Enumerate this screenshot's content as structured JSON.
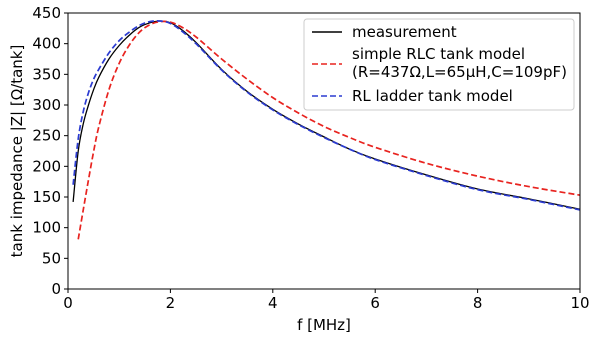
{
  "chart_data": {
    "type": "line",
    "title": "",
    "xlabel": "f [MHz]",
    "ylabel": "tank impedance |Z| [Ω/tank]",
    "xlim": [
      0,
      10
    ],
    "ylim": [
      0,
      450
    ],
    "xticks": [
      "0",
      "2",
      "4",
      "6",
      "8",
      "10"
    ],
    "yticks": [
      "0",
      "50",
      "100",
      "150",
      "200",
      "250",
      "300",
      "350",
      "400",
      "450"
    ],
    "grid": false,
    "legend_position": "top-right",
    "legend": [
      {
        "label_lines": [
          "measurement"
        ]
      },
      {
        "label_lines": [
          "simple RLC tank model",
          "(R=437Ω,L=65μH,C=109pF)"
        ]
      },
      {
        "label_lines": [
          "RL ladder tank model"
        ]
      }
    ],
    "series": [
      {
        "name": "measurement",
        "color": "#000000",
        "dash": "solid",
        "x": [
          0.1,
          0.2,
          0.3,
          0.4,
          0.5,
          0.6,
          0.8,
          1.0,
          1.2,
          1.4,
          1.6,
          1.8,
          2.0,
          2.2,
          2.5,
          3.0,
          3.5,
          4.0,
          4.5,
          5.0,
          5.5,
          6.0,
          7.0,
          8.0,
          9.0,
          10.0
        ],
        "y": [
          142,
          225,
          270,
          300,
          325,
          345,
          375,
          397,
          414,
          427,
          434,
          437,
          434,
          424,
          402,
          358,
          322,
          293,
          269,
          248,
          228,
          212,
          186,
          163,
          147,
          130
        ]
      },
      {
        "name": "simple RLC tank model (R=437Ω,L=65μH,C=109pF)",
        "color": "#e8231f",
        "dash": "dashed",
        "x": [
          0.2,
          0.3,
          0.4,
          0.5,
          0.6,
          0.8,
          1.0,
          1.2,
          1.4,
          1.6,
          1.8,
          2.0,
          2.2,
          2.5,
          3.0,
          3.5,
          4.0,
          4.5,
          5.0,
          5.5,
          6.0,
          7.0,
          8.0,
          9.0,
          10.0
        ],
        "y": [
          81,
          130,
          178,
          224,
          264,
          325,
          368,
          398,
          419,
          431,
          436,
          435,
          428,
          411,
          375,
          342,
          312,
          287,
          265,
          247,
          231,
          205,
          184,
          167,
          153
        ]
      },
      {
        "name": "RL ladder tank model",
        "color": "#2b3bd1",
        "dash": "dashed",
        "x": [
          0.1,
          0.2,
          0.3,
          0.4,
          0.5,
          0.6,
          0.8,
          1.0,
          1.2,
          1.4,
          1.6,
          1.8,
          2.0,
          2.2,
          2.5,
          3.0,
          3.5,
          4.0,
          4.5,
          5.0,
          5.5,
          6.0,
          7.0,
          8.0,
          9.0,
          10.0
        ],
        "y": [
          170,
          245,
          290,
          320,
          342,
          358,
          385,
          405,
          419,
          430,
          436,
          437,
          433,
          422,
          400,
          357,
          321,
          292,
          268,
          247,
          228,
          211,
          185,
          162,
          146,
          129
        ]
      }
    ]
  }
}
